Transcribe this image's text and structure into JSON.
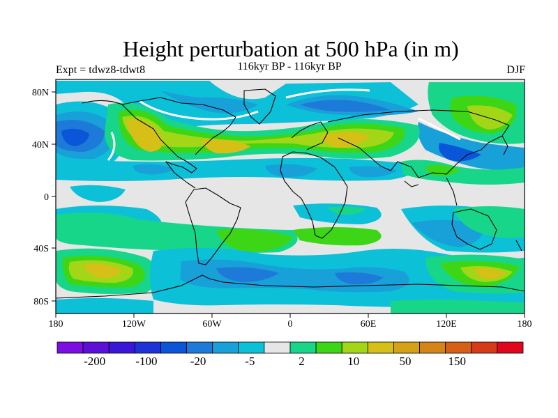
{
  "title": "Height perturbation at 500 hPa (in m)",
  "left_label": "Expt = tdwz8-tdwt8",
  "center_label": "116kyr BP - 116kyr BP",
  "right_label": "DJF",
  "y_ticks": [
    "80N",
    "40N",
    "0",
    "40S",
    "80S"
  ],
  "x_ticks": [
    "180",
    "120W",
    "60W",
    "0",
    "60E",
    "120E",
    "180"
  ],
  "colorbar": {
    "colors": [
      "#7b0ee0",
      "#5b10d8",
      "#3a17d6",
      "#1f32d6",
      "#0a55d8",
      "#1e7ad8",
      "#18a0d8",
      "#0cc0d8",
      "#e6e6e6",
      "#17d68a",
      "#3dd617",
      "#a2d617",
      "#d6c017",
      "#d6a017",
      "#d68417",
      "#d66017",
      "#d63a17",
      "#e0061d"
    ],
    "labels": [
      "-200",
      "-100",
      "-20",
      "-5",
      "2",
      "10",
      "50",
      "150"
    ]
  },
  "field_colors": {
    "neutral": "#e6e6e6",
    "cyan": "#0cc0d8",
    "lightblue": "#18a0d8",
    "blue": "#1e7ad8",
    "darkblue": "#0a55d8",
    "green": "#17d68a",
    "lime": "#3dd617",
    "yellowgreen": "#a2d617",
    "yellow": "#d6c017",
    "orange": "#d6a017",
    "white": "#ffffff"
  }
}
